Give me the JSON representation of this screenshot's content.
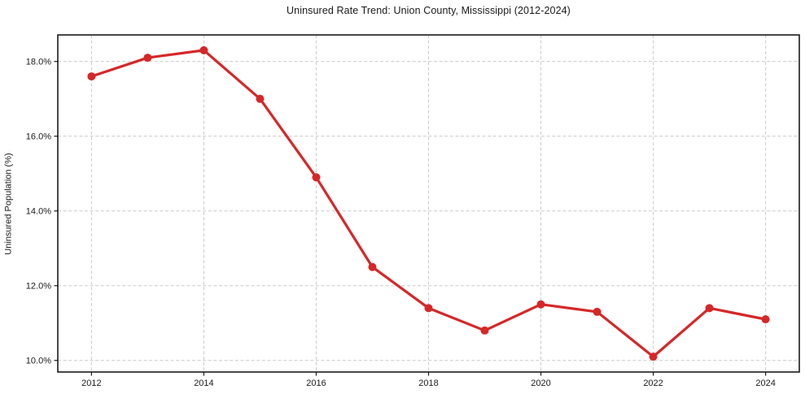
{
  "chart_data": {
    "type": "line",
    "title": "Uninsured Rate Trend: Union County, Mississippi (2012-2024)",
    "xlabel": "",
    "ylabel": "Uninsured Population (%)",
    "x": [
      2012,
      2013,
      2014,
      2015,
      2016,
      2017,
      2018,
      2019,
      2020,
      2021,
      2022,
      2023,
      2024
    ],
    "series": [
      {
        "name": "Uninsured Population (%)",
        "values": [
          17.6,
          18.1,
          18.3,
          17.0,
          14.9,
          12.5,
          11.4,
          10.8,
          11.5,
          11.3,
          10.1,
          11.4,
          11.1
        ]
      }
    ],
    "xlim": [
      2011.4,
      2024.6
    ],
    "ylim": [
      9.69,
      18.71
    ],
    "xticks": [
      2012,
      2014,
      2016,
      2018,
      2020,
      2022,
      2024
    ],
    "xtick_labels": [
      "2012",
      "2014",
      "2016",
      "2018",
      "2020",
      "2022",
      "2024"
    ],
    "yticks": [
      10,
      12,
      14,
      16,
      18
    ],
    "ytick_labels": [
      "10.0%",
      "12.0%",
      "14.0%",
      "16.0%",
      "18.0%"
    ],
    "grid": true,
    "grid_style": "dashed",
    "legend_position": "none",
    "line_color": "#d62728",
    "marker_color": "#d62728",
    "grid_color": "#cbcbcb",
    "axis_color": "#1a1a1a",
    "plot_background": "#ffffff"
  }
}
